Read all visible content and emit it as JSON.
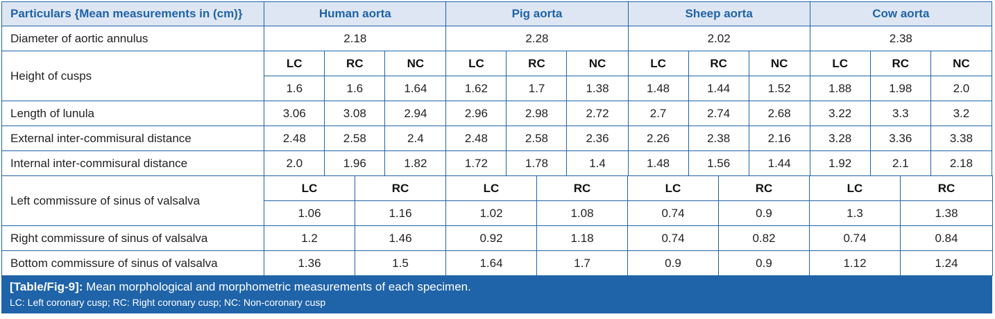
{
  "header": {
    "particulars": "Particulars {Mean measurements in (cm)}",
    "species": [
      "Human aorta",
      "Pig aorta",
      "Sheep aorta",
      "Cow aorta"
    ]
  },
  "cusp_labels": {
    "lc": "LC",
    "rc": "RC",
    "nc": "NC"
  },
  "rows": {
    "diameter": {
      "label": "Diameter of aortic annulus",
      "values": [
        "2.18",
        "2.28",
        "2.02",
        "2.38"
      ]
    },
    "height": {
      "label": "Height of cusps",
      "values": [
        "1.6",
        "1.6",
        "1.64",
        "1.62",
        "1.7",
        "1.38",
        "1.48",
        "1.44",
        "1.52",
        "1.88",
        "1.98",
        "2.0"
      ]
    },
    "lunula": {
      "label": "Length of lunula",
      "values": [
        "3.06",
        "3.08",
        "2.94",
        "2.96",
        "2.98",
        "2.72",
        "2.7",
        "2.74",
        "2.68",
        "3.22",
        "3.3",
        "3.2"
      ]
    },
    "external": {
      "label": "External inter-commisural distance",
      "values": [
        "2.48",
        "2.58",
        "2.4",
        "2.48",
        "2.58",
        "2.36",
        "2.26",
        "2.38",
        "2.16",
        "3.28",
        "3.36",
        "3.38"
      ]
    },
    "internal": {
      "label": "Internal inter-commisural distance",
      "values": [
        "2.0",
        "1.96",
        "1.82",
        "1.72",
        "1.78",
        "1.4",
        "1.48",
        "1.56",
        "1.44",
        "1.92",
        "2.1",
        "2.18"
      ]
    },
    "left_commissure": {
      "label": "Left commissure of sinus of valsalva",
      "values": [
        "1.06",
        "1.16",
        "1.02",
        "1.08",
        "0.74",
        "0.9",
        "1.3",
        "1.38"
      ]
    },
    "right_commissure": {
      "label": "Right commissure of sinus of valsalva",
      "values": [
        "1.2",
        "1.46",
        "0.92",
        "1.18",
        "0.74",
        "0.82",
        "0.74",
        "0.84"
      ]
    },
    "bottom_commissure": {
      "label": "Bottom commissure of sinus of valsalva",
      "values": [
        "1.36",
        "1.5",
        "1.64",
        "1.7",
        "0.9",
        "0.9",
        "1.12",
        "1.24"
      ]
    }
  },
  "caption": {
    "tag": "[Table/Fig-9]:",
    "text": " Mean morphological and morphometric measurements of each specimen.",
    "footnote": "LC: Left coronary cusp; RC: Right coronary cusp; NC: Non-coronary cusp"
  },
  "colors": {
    "accent": "#1f63a8",
    "header_bg": "#dde6f2"
  }
}
